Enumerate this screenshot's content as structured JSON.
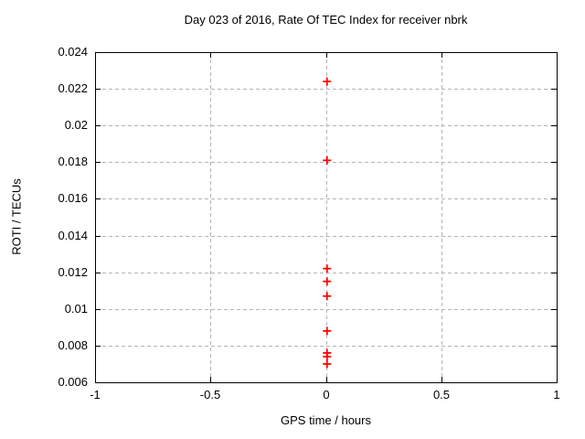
{
  "chart_data": {
    "type": "scatter",
    "title": "Day 023 of 2016, Rate Of TEC Index for receiver nbrk",
    "xlabel": "GPS time / hours",
    "ylabel": "ROTI / TECUs",
    "xlim": [
      -1,
      1
    ],
    "ylim": [
      0.006,
      0.024
    ],
    "xticks": [
      -1,
      -0.5,
      0,
      0.5,
      1
    ],
    "xtick_labels": [
      "-1",
      "-0.5",
      "0",
      "0.5",
      "1"
    ],
    "yticks": [
      0.006,
      0.008,
      0.01,
      0.012,
      0.014,
      0.016,
      0.018,
      0.02,
      0.022,
      0.024
    ],
    "ytick_labels": [
      "0.006",
      "0.008",
      "0.01",
      "0.012",
      "0.014",
      "0.016",
      "0.018",
      "0.02",
      "0.022",
      "0.024"
    ],
    "grid": true,
    "grid_style": "dashed",
    "legend": "none",
    "marker": "plus",
    "marker_color": "#ff0000",
    "grid_color": "#b4b4b4",
    "axis_color": "#000000",
    "background_color": "#ffffff",
    "series": [
      {
        "name": "ROTI",
        "points": [
          [
            0.005,
            0.0224
          ],
          [
            0.005,
            0.0181
          ],
          [
            0.005,
            0.0122
          ],
          [
            0.005,
            0.0115
          ],
          [
            0.005,
            0.0107
          ],
          [
            0.005,
            0.0088
          ],
          [
            0.005,
            0.0076
          ],
          [
            0.005,
            0.0074
          ],
          [
            0.005,
            0.007
          ]
        ]
      }
    ]
  }
}
